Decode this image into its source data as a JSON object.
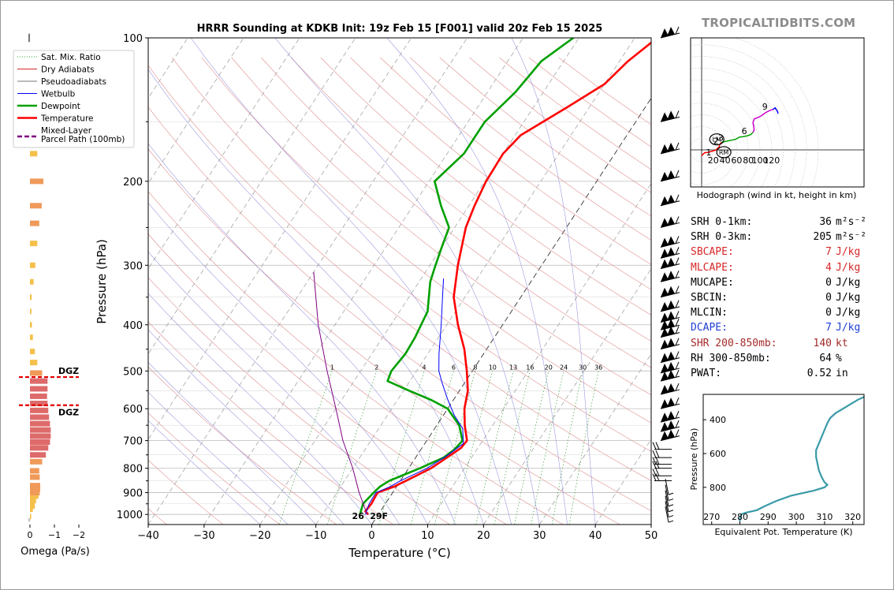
{
  "title": "HRRR Sounding at KDKB Init: 19z Feb 15 [F001] valid 20z Feb 15 2025",
  "brand": "TROPICALTIDBITS.COM",
  "chart_data": [
    {
      "type": "line",
      "subtype": "skew-t",
      "title": "HRRR Sounding at KDKB Init: 19z Feb 15 [F001] valid 20z Feb 15 2025",
      "xlabel": "Temperature (°C)",
      "ylabel": "Pressure (hPa)",
      "xlim": [
        -40,
        50
      ],
      "ylim": [
        1050,
        100
      ],
      "y_scale": "log",
      "x_ticks": [
        -40,
        -30,
        -20,
        -10,
        0,
        10,
        20,
        30,
        40,
        50
      ],
      "y_ticks": [
        100,
        200,
        300,
        400,
        500,
        600,
        700,
        800,
        900,
        1000
      ],
      "legend": {
        "placement": "top-left",
        "entries": [
          {
            "label": "Sat. Mix. Ratio",
            "color": "#2ca02c",
            "style": "dotted"
          },
          {
            "label": "Dry Adiabats",
            "color": "#d62728",
            "style": "solid-thin"
          },
          {
            "label": "Pseudoadiabats",
            "color": "#777777",
            "style": "solid-thin"
          },
          {
            "label": "Wetbulb",
            "color": "#0000ff",
            "style": "solid-thin"
          },
          {
            "label": "Dewpoint",
            "color": "#00a000",
            "style": "solid"
          },
          {
            "label": "Temperature",
            "color": "#ff0000",
            "style": "solid"
          },
          {
            "label": "Mixed-Layer\nParcel Path (100mb)",
            "color": "#800080",
            "style": "dashed"
          }
        ]
      },
      "mixing_ratio_labels": [
        "1",
        "2",
        "4",
        "6",
        "8",
        "10",
        "13",
        "16",
        "20",
        "24",
        "30",
        "36"
      ],
      "series": [
        {
          "name": "Temperature",
          "color": "#ff0000",
          "points": [
            [
              -1.8,
              1000
            ],
            [
              -2.7,
              985
            ],
            [
              -2.5,
              950
            ],
            [
              -2.7,
              900
            ],
            [
              -0.5,
              875
            ],
            [
              1,
              850
            ],
            [
              4,
              800
            ],
            [
              6,
              750
            ],
            [
              7,
              725
            ],
            [
              7.2,
              700
            ],
            [
              5,
              650
            ],
            [
              3,
              600
            ],
            [
              1.5,
              550
            ],
            [
              -1,
              500
            ],
            [
              -4,
              450
            ],
            [
              -8,
              400
            ],
            [
              -12,
              350
            ],
            [
              -15,
              300
            ],
            [
              -18,
              250
            ],
            [
              -19,
              225
            ],
            [
              -19.8,
              200
            ],
            [
              -20,
              175
            ],
            [
              -19,
              160
            ],
            [
              -14,
              140
            ],
            [
              -10,
              125
            ],
            [
              -8.5,
              112
            ],
            [
              -6,
              100
            ]
          ]
        },
        {
          "name": "Dewpoint",
          "color": "#00a000",
          "points": [
            [
              -3.3,
              1000
            ],
            [
              -3.5,
              985
            ],
            [
              -4,
              950
            ],
            [
              -3.4,
              900
            ],
            [
              -3,
              875
            ],
            [
              -2,
              850
            ],
            [
              2,
              800
            ],
            [
              5,
              760
            ],
            [
              6,
              730
            ],
            [
              6.4,
              700
            ],
            [
              4,
              650
            ],
            [
              0,
              600
            ],
            [
              -4,
              575
            ],
            [
              -9,
              550
            ],
            [
              -14,
              525
            ],
            [
              -14.5,
              500
            ],
            [
              -14,
              460
            ],
            [
              -14.2,
              425
            ],
            [
              -15,
              375
            ],
            [
              -18,
              325
            ],
            [
              -19,
              300
            ],
            [
              -20,
              275
            ],
            [
              -21,
              250
            ],
            [
              -25,
              225
            ],
            [
              -29,
              200
            ],
            [
              -27,
              175
            ],
            [
              -27,
              150
            ],
            [
              -25,
              130
            ],
            [
              -24,
              112
            ],
            [
              -21,
              100
            ]
          ]
        },
        {
          "name": "Wetbulb",
          "color": "#0000ff",
          "points": [
            [
              -2.3,
              1000
            ],
            [
              -2.9,
              950
            ],
            [
              -3,
              900
            ],
            [
              -1.2,
              875
            ],
            [
              0,
              850
            ],
            [
              3.3,
              800
            ],
            [
              5.5,
              750
            ],
            [
              6.9,
              710
            ],
            [
              5,
              660
            ],
            [
              2,
              620
            ],
            [
              -1,
              575
            ],
            [
              -4,
              530
            ],
            [
              -6,
              500
            ],
            [
              -8,
              460
            ],
            [
              -11,
              400
            ],
            [
              -14,
              350
            ],
            [
              -16,
              320
            ]
          ]
        },
        {
          "name": "Mixed-Layer\nParcel Path (100mb)",
          "color": "#800080",
          "points": [
            [
              -2,
              1000
            ],
            [
              -6,
              900
            ],
            [
              -10,
              800
            ],
            [
              -15,
              700
            ],
            [
              -20,
              600
            ],
            [
              -26,
              500
            ],
            [
              -33,
              400
            ],
            [
              -40,
              310
            ]
          ]
        }
      ],
      "surface_labels": {
        "dewpoint": "26",
        "temperature": "29F"
      },
      "wind_barbs": "shown at right edge of the skew-T"
    },
    {
      "type": "bar",
      "orientation": "horizontal",
      "xlabel": "Omega (Pa/s)",
      "x_ticks": [
        "0",
        "−1",
        "−2"
      ],
      "dgz_label": "DGZ",
      "dgz_pressure": [
        515,
        590
      ],
      "bars": [
        [
          1010,
          0.05
        ],
        [
          975,
          0.12
        ],
        [
          960,
          0.2
        ],
        [
          935,
          0.25
        ],
        [
          915,
          0.35
        ],
        [
          900,
          0.4
        ],
        [
          885,
          0.42
        ],
        [
          870,
          0.42
        ],
        [
          835,
          0.4
        ],
        [
          810,
          0.38
        ],
        [
          775,
          0.5
        ],
        [
          750,
          0.65
        ],
        [
          725,
          0.75
        ],
        [
          705,
          0.82
        ],
        [
          685,
          0.85
        ],
        [
          665,
          0.85
        ],
        [
          645,
          0.82
        ],
        [
          625,
          0.78
        ],
        [
          605,
          0.75
        ],
        [
          585,
          0.72
        ],
        [
          565,
          0.7
        ],
        [
          545,
          0.72
        ],
        [
          525,
          0.72
        ],
        [
          505,
          0.5
        ],
        [
          480,
          0.3
        ],
        [
          455,
          0.2
        ],
        [
          425,
          0.12
        ],
        [
          400,
          0.08
        ],
        [
          375,
          0.06
        ],
        [
          350,
          0.07
        ],
        [
          325,
          0.15
        ],
        [
          300,
          0.22
        ],
        [
          270,
          0.3
        ],
        [
          245,
          0.38
        ],
        [
          225,
          0.48
        ],
        [
          200,
          0.55
        ],
        [
          175,
          0.3
        ]
      ]
    },
    {
      "type": "line",
      "subtype": "hodograph",
      "xlabel": "Hodograph (wind in kt, height in km)",
      "radius_labels": [
        "20",
        "40",
        "60",
        "80",
        "100",
        "120"
      ],
      "height_labels": [
        "1",
        "2",
        "3",
        "6",
        "9"
      ],
      "markers": [
        "LM",
        "RM"
      ],
      "segments": [
        {
          "color": "#ff0000",
          "points": [
            [
              0,
              -10
            ],
            [
              5,
              -5
            ],
            [
              12,
              -4
            ],
            [
              24,
              -0.5
            ],
            [
              30,
              5
            ],
            [
              31,
              9
            ],
            [
              34,
              13
            ]
          ]
        },
        {
          "color": "#00a000",
          "points": [
            [
              34,
              13
            ],
            [
              46,
              15.5
            ],
            [
              58,
              18
            ],
            [
              65,
              22
            ],
            [
              70,
              22.5
            ],
            [
              78,
              24
            ],
            [
              84,
              26
            ],
            [
              88,
              30
            ]
          ]
        },
        {
          "color": "#cc00cc",
          "points": [
            [
              88,
              30
            ],
            [
              90,
              34
            ],
            [
              89,
              42
            ],
            [
              88,
              46
            ],
            [
              90,
              53
            ],
            [
              100,
              57
            ],
            [
              110,
              64
            ],
            [
              118,
              68
            ],
            [
              122,
              69
            ]
          ]
        },
        {
          "color": "#0000ff",
          "points": [
            [
              122,
              69
            ],
            [
              126,
              72
            ],
            [
              130,
              66
            ],
            [
              131,
              62
            ]
          ]
        }
      ],
      "lm": [
        26,
        18
      ],
      "rm": [
        38,
        -4
      ]
    },
    {
      "type": "line",
      "subtype": "theta-e profile",
      "xlabel": "Equivalent Pot. Temperature (K)",
      "ylabel": "Pressure (hPa)",
      "xlim": [
        267,
        324
      ],
      "ylim": [
        1020,
        250
      ],
      "x_ticks": [
        270,
        280,
        290,
        300,
        310,
        320
      ],
      "y_ticks": [
        400,
        600,
        800
      ],
      "color": "#3a9aa8",
      "points": [
        [
          280,
          1000
        ],
        [
          280,
          985
        ],
        [
          280.5,
          960
        ],
        [
          282,
          950
        ],
        [
          286,
          935
        ],
        [
          289,
          910
        ],
        [
          293,
          880
        ],
        [
          298,
          850
        ],
        [
          306,
          820
        ],
        [
          310,
          800
        ],
        [
          311,
          785
        ],
        [
          310,
          770
        ],
        [
          309,
          740
        ],
        [
          308,
          700
        ],
        [
          307.5,
          660
        ],
        [
          307,
          620
        ],
        [
          307,
          580
        ],
        [
          308,
          540
        ],
        [
          309,
          500
        ],
        [
          310,
          460
        ],
        [
          311,
          420
        ],
        [
          312,
          390
        ],
        [
          314,
          360
        ],
        [
          317,
          330
        ],
        [
          320,
          300
        ],
        [
          322,
          280
        ],
        [
          324,
          265
        ]
      ]
    }
  ],
  "params": [
    {
      "label": "SRH 0-1km:",
      "value": "36",
      "unit": "m²s⁻²",
      "color": "#000000"
    },
    {
      "label": "SRH 0-3km:",
      "value": "205",
      "unit": "m²s⁻²",
      "color": "#000000"
    },
    {
      "label": "SBCAPE:",
      "value": "7",
      "unit": "J/kg",
      "color": "#d62728"
    },
    {
      "label": "MLCAPE:",
      "value": "4",
      "unit": "J/kg",
      "color": "#d62728"
    },
    {
      "label": "MUCAPE:",
      "value": "0",
      "unit": "J/kg",
      "color": "#000000"
    },
    {
      "label": "SBCIN:",
      "value": "0",
      "unit": "J/kg",
      "color": "#000000"
    },
    {
      "label": "MLCIN:",
      "value": "0",
      "unit": "J/kg",
      "color": "#000000"
    },
    {
      "label": "DCAPE:",
      "value": "7",
      "unit": "J/kg",
      "color": "#1f3fd6"
    },
    {
      "label": "SHR 200-850mb:",
      "value": "140",
      "unit": "kt",
      "color": "#a52a2a"
    },
    {
      "label": "RH 300-850mb:",
      "value": "64",
      "unit": "%",
      "color": "#000000"
    },
    {
      "label": "PWAT:",
      "value": "0.52",
      "unit": "in",
      "color": "#000000"
    }
  ]
}
